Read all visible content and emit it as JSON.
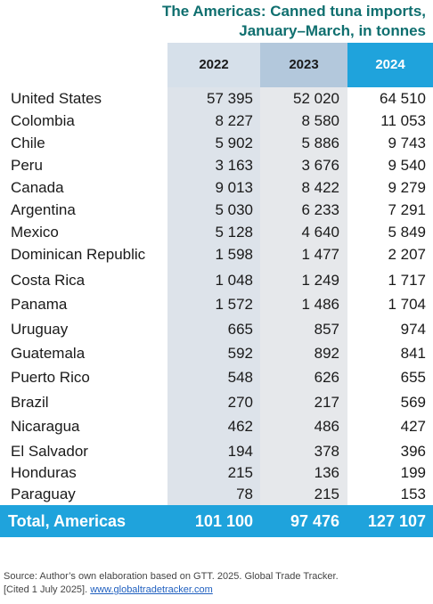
{
  "title": {
    "line1": "The Americas: Canned tuna imports,",
    "line2": "January–March, in tonnes"
  },
  "columns": [
    "2022",
    "2023",
    "2024"
  ],
  "rows": [
    {
      "country": "United States",
      "v2022": "57 395",
      "v2023": "52 020",
      "v2024": "64 510"
    },
    {
      "country": "Colombia",
      "v2022": "8 227",
      "v2023": "8 580",
      "v2024": "11 053"
    },
    {
      "country": "Chile",
      "v2022": "5 902",
      "v2023": "5 886",
      "v2024": "9 743"
    },
    {
      "country": "Peru",
      "v2022": "3 163",
      "v2023": "3 676",
      "v2024": "9 540"
    },
    {
      "country": "Canada",
      "v2022": "9 013",
      "v2023": "8 422",
      "v2024": "9 279"
    },
    {
      "country": "Argentina",
      "v2022": "5 030",
      "v2023": "6 233",
      "v2024": "7 291"
    },
    {
      "country": "Mexico",
      "v2022": "5 128",
      "v2023": "4 640",
      "v2024": "5 849"
    },
    {
      "country": "Dominican Republic",
      "v2022": "1 598",
      "v2023": "1 477",
      "v2024": "2 207"
    },
    {
      "country": "Costa Rica",
      "v2022": "1 048",
      "v2023": "1 249",
      "v2024": "1 717"
    },
    {
      "country": "Panama",
      "v2022": "1 572",
      "v2023": "1 486",
      "v2024": "1 704"
    },
    {
      "country": "Uruguay",
      "v2022": "665",
      "v2023": "857",
      "v2024": "974"
    },
    {
      "country": "Guatemala",
      "v2022": "592",
      "v2023": "892",
      "v2024": "841"
    },
    {
      "country": "Puerto Rico",
      "v2022": "548",
      "v2023": "626",
      "v2024": "655"
    },
    {
      "country": "Brazil",
      "v2022": "270",
      "v2023": "217",
      "v2024": "569"
    },
    {
      "country": "Nicaragua",
      "v2022": "462",
      "v2023": "486",
      "v2024": "427"
    },
    {
      "country": "El Salvador",
      "v2022": "194",
      "v2023": "378",
      "v2024": "396"
    },
    {
      "country": "Honduras",
      "v2022": "215",
      "v2023": "136",
      "v2024": "199"
    },
    {
      "country": "Paraguay",
      "v2022": "78",
      "v2023": "215",
      "v2024": "153"
    }
  ],
  "total": {
    "label": "Total, Americas",
    "v2022": "101 100",
    "v2023": "97 476",
    "v2024": "127 107"
  },
  "source": {
    "line1": "Source: Author’s own elaboration based on GTT. 2025. Global Trade Tracker.",
    "line2_prefix": "[Cited 1 July 2025]. ",
    "link": "www.globaltradetracker.com"
  },
  "colors": {
    "title": "#0f6f6f",
    "accent": "#1fa3dc",
    "header2023": "#b3c8dc",
    "header2022": "#d6e0ea"
  }
}
